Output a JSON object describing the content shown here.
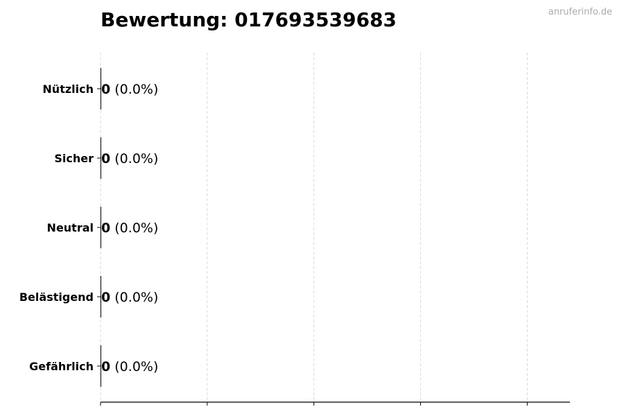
{
  "watermark": "anruferinfo.de",
  "chart_data": {
    "type": "bar",
    "orientation": "horizontal",
    "title": "Bewertung: 017693539683",
    "categories": [
      "Nützlich",
      "Sicher",
      "Neutral",
      "Belästigend",
      "Gefährlich"
    ],
    "values": [
      0,
      0,
      0,
      0,
      0
    ],
    "labels": [
      {
        "count": "0",
        "percent": "(0.0%)"
      },
      {
        "count": "0",
        "percent": "(0.0%)"
      },
      {
        "count": "0",
        "percent": "(0.0%)"
      },
      {
        "count": "0",
        "percent": "(0.0%)"
      },
      {
        "count": "0",
        "percent": "(0.0%)"
      }
    ],
    "xlim": [
      0,
      4.4
    ],
    "xticks": [
      0,
      1,
      2,
      3,
      4
    ],
    "xtick_labels_shown": false,
    "grid": "vertical dashed",
    "bar_color": "#000000",
    "grid_color": "#d9d9d9"
  }
}
